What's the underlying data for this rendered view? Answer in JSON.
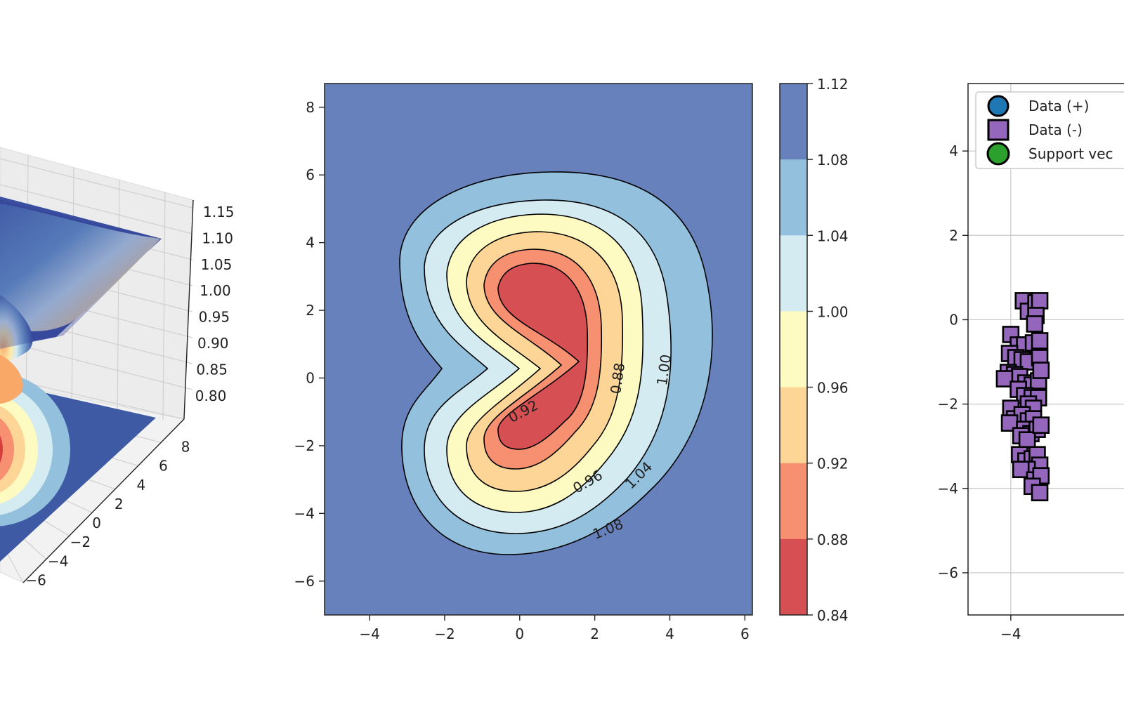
{
  "chart_data": [
    {
      "type": "surface",
      "panel": "left",
      "view": "3d",
      "zticks": [
        "1.15",
        "1.10",
        "1.05",
        "1.00",
        "0.95",
        "0.90",
        "0.85",
        "0.80"
      ],
      "yticks": [
        "8",
        "6",
        "4",
        "2",
        "0",
        "−2",
        "−4",
        "−6"
      ],
      "colormap": "RdYlBu",
      "grid": true
    },
    {
      "type": "contour",
      "panel": "middle",
      "xticks": [
        "−4",
        "−2",
        "0",
        "2",
        "4",
        "6"
      ],
      "yticks": [
        "8",
        "6",
        "4",
        "2",
        "0",
        "−2",
        "−4",
        "−6"
      ],
      "xlim": [
        -5.2,
        6.2
      ],
      "ylim": [
        -7.0,
        8.7
      ],
      "levels": [
        0.84,
        0.88,
        0.92,
        0.96,
        1.0,
        1.04,
        1.08,
        1.12
      ],
      "contour_labels": [
        {
          "text": "0.88",
          "level": 0.88
        },
        {
          "text": "0.92",
          "level": 0.92
        },
        {
          "text": "0.96",
          "level": 0.96
        },
        {
          "text": "1.00",
          "level": 1.0
        },
        {
          "text": "1.04",
          "level": 1.04
        },
        {
          "text": "1.08",
          "level": 1.08
        }
      ],
      "colorbar": {
        "ticks": [
          "1.12",
          "1.08",
          "1.04",
          "1.00",
          "0.96",
          "0.92",
          "0.88",
          "0.84"
        ],
        "colors": [
          "#6681bc",
          "#93c1dd",
          "#d4ebf2",
          "#fefbc2",
          "#fdd596",
          "#f69070",
          "#d64f52"
        ]
      }
    },
    {
      "type": "scatter",
      "panel": "right",
      "xticks": [
        "−4"
      ],
      "yticks": [
        "4",
        "2",
        "0",
        "−2",
        "−4",
        "−6"
      ],
      "xlim": [
        -5.7,
        0.5
      ],
      "ylim": [
        -7.0,
        5.6
      ],
      "grid": true,
      "legend": {
        "placement": "upper-left",
        "entries": [
          {
            "label": "Data (+)",
            "marker": "circle",
            "color": "#1f77b4"
          },
          {
            "label": "Data (-)",
            "marker": "square",
            "color": "#9467bd"
          },
          {
            "label": "Support vec",
            "marker": "circle",
            "color": "#2ca02c"
          }
        ]
      },
      "series": [
        {
          "marker": "square",
          "color": "#9467bd",
          "points": [
            [
              -3.5,
              0.45
            ],
            [
              -3.3,
              0.2
            ],
            [
              -3.0,
              0.4
            ],
            [
              -2.85,
              0.45
            ],
            [
              -3.0,
              0.1
            ],
            [
              -3.05,
              -0.1
            ],
            [
              -4.0,
              -0.35
            ],
            [
              -3.7,
              -0.6
            ],
            [
              -3.45,
              -0.6
            ],
            [
              -3.1,
              -0.55
            ],
            [
              -2.85,
              -0.5
            ],
            [
              -4.05,
              -0.8
            ],
            [
              -3.8,
              -0.9
            ],
            [
              -3.55,
              -0.95
            ],
            [
              -3.3,
              -1.0
            ],
            [
              -2.85,
              -0.9
            ],
            [
              -4.1,
              -1.25
            ],
            [
              -3.85,
              -1.3
            ],
            [
              -3.65,
              -1.35
            ],
            [
              -3.4,
              -1.5
            ],
            [
              -3.15,
              -1.55
            ],
            [
              -2.9,
              -1.45
            ],
            [
              -2.8,
              -1.2
            ],
            [
              -4.25,
              -1.4
            ],
            [
              -3.7,
              -1.65
            ],
            [
              -3.45,
              -1.8
            ],
            [
              -3.15,
              -1.85
            ],
            [
              -2.9,
              -1.85
            ],
            [
              -3.3,
              -2.0
            ],
            [
              -3.1,
              -2.1
            ],
            [
              -4.0,
              -2.1
            ],
            [
              -3.85,
              -2.35
            ],
            [
              -3.55,
              -2.25
            ],
            [
              -3.3,
              -2.4
            ],
            [
              -3.1,
              -2.35
            ],
            [
              -4.05,
              -2.45
            ],
            [
              -3.45,
              -2.6
            ],
            [
              -3.2,
              -2.7
            ],
            [
              -2.95,
              -2.6
            ],
            [
              -3.6,
              -2.75
            ],
            [
              -3.35,
              -2.85
            ],
            [
              -2.8,
              -2.5
            ],
            [
              -3.65,
              -3.2
            ],
            [
              -3.4,
              -3.35
            ],
            [
              -3.15,
              -3.3
            ],
            [
              -2.95,
              -3.2
            ],
            [
              -2.85,
              -3.45
            ],
            [
              -3.35,
              -3.55
            ],
            [
              -3.6,
              -3.55
            ],
            [
              -3.05,
              -3.8
            ],
            [
              -2.8,
              -3.7
            ],
            [
              -3.15,
              -3.95
            ],
            [
              -2.85,
              -4.1
            ]
          ]
        }
      ]
    }
  ]
}
